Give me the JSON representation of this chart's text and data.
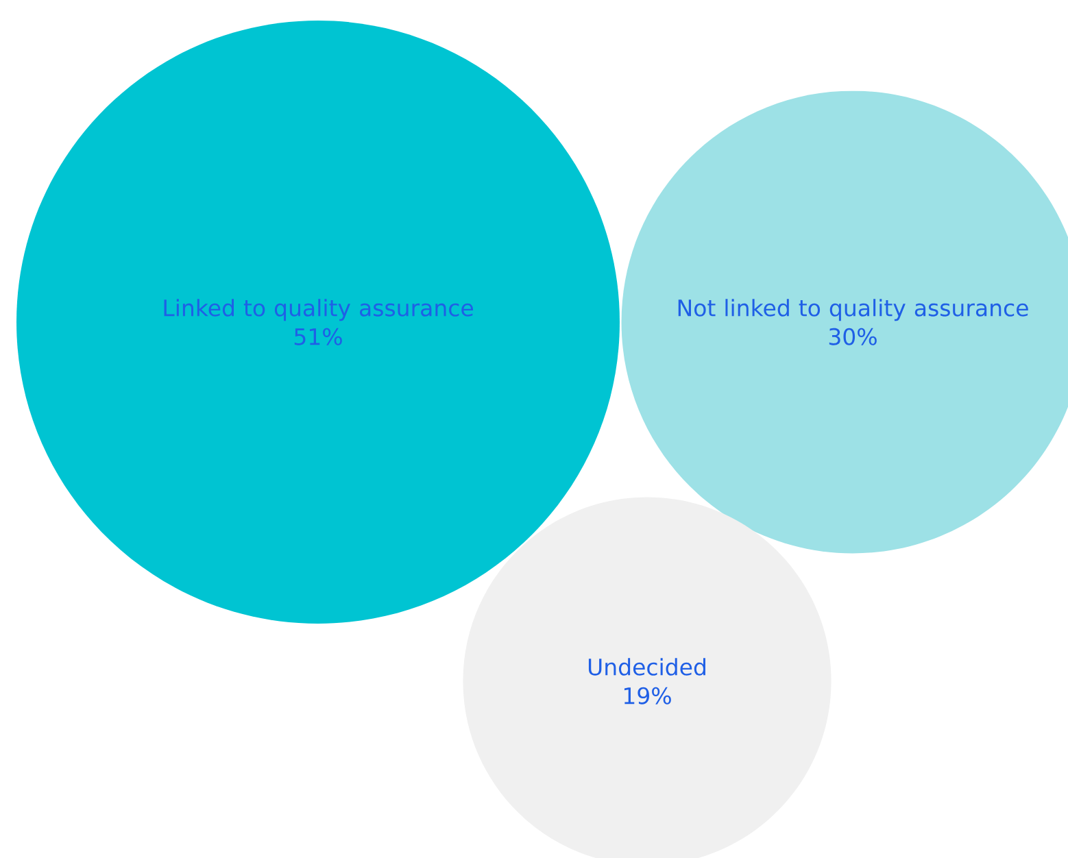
{
  "chart_data": {
    "type": "other",
    "categories": [
      "Linked to quality assurance",
      "Not linked to quality assurance",
      "Undecided"
    ],
    "values": [
      51,
      30,
      19
    ],
    "value_labels": [
      "51%",
      "30%",
      "19%"
    ],
    "colors": [
      "#00c4d2",
      "#9de1e6",
      "#f0f0f0"
    ]
  }
}
